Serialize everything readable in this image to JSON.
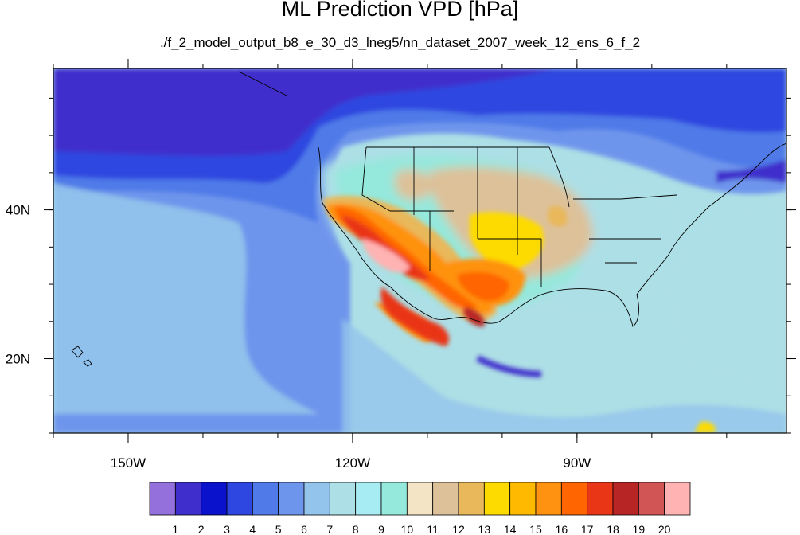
{
  "title": "ML Prediction VPD [hPa]",
  "subtitle": "./f_2_model_output_b8_e_30_d3_lneg5/nn_dataset_2007_week_12_ens_6_f_2",
  "map": {
    "lon_range": [
      -160,
      -62
    ],
    "lat_range": [
      10,
      59
    ],
    "lon_ticks": [
      {
        "value": -150,
        "label": "150W"
      },
      {
        "value": -120,
        "label": "120W"
      },
      {
        "value": -90,
        "label": "90W"
      }
    ],
    "lat_ticks": [
      {
        "value": 40,
        "label": "40N"
      },
      {
        "value": 20,
        "label": "20N"
      }
    ]
  },
  "colorbar": {
    "labels": [
      "1",
      "2",
      "3",
      "4",
      "5",
      "6",
      "7",
      "8",
      "9",
      "10",
      "11",
      "12",
      "13",
      "14",
      "15",
      "16",
      "17",
      "18",
      "19",
      "20"
    ],
    "colors": [
      "#9370DB",
      "#3F2ECC",
      "#0A12CC",
      "#2D47E0",
      "#4F7AE8",
      "#6E95EC",
      "#93C4EC",
      "#ADDFE6",
      "#A6ECF2",
      "#94E8DC",
      "#F3E4C5",
      "#DDC199",
      "#E8B85A",
      "#FDDB00",
      "#FFBA00",
      "#FF9210",
      "#FF6500",
      "#E93617",
      "#B82525",
      "#D25555",
      "#FFB3B3"
    ]
  }
}
